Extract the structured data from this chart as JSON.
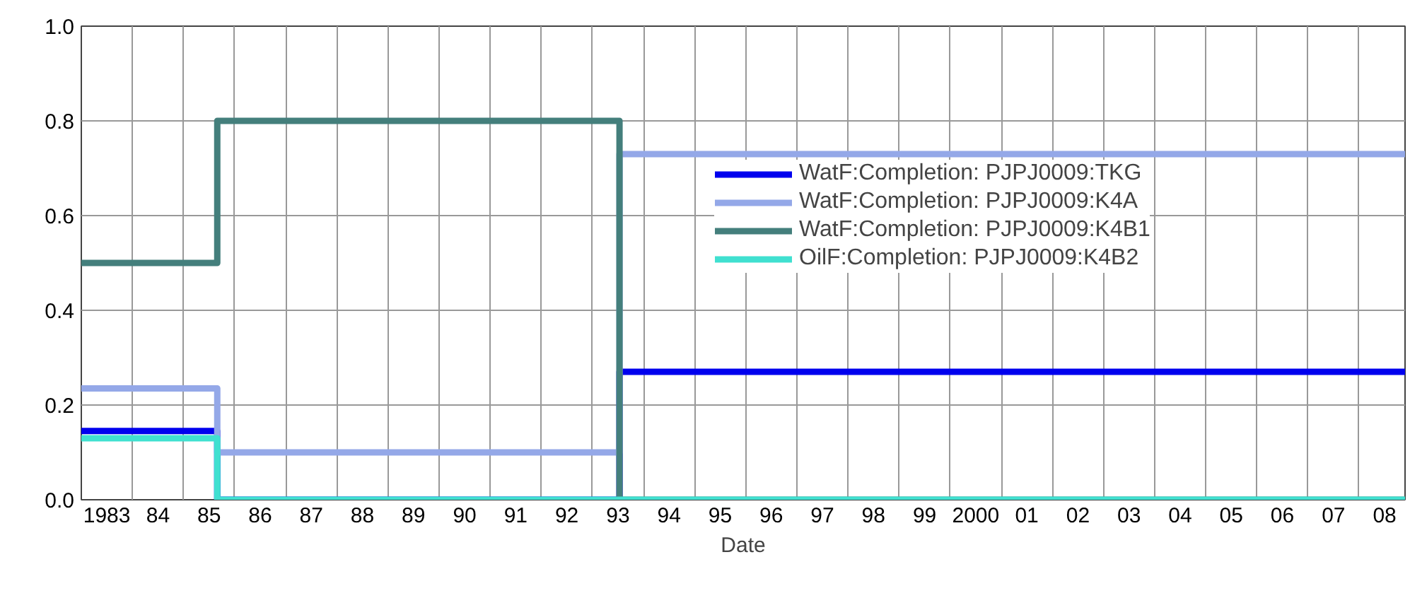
{
  "chart_data": {
    "type": "step",
    "xlabel": "Date",
    "x": [
      1982.5,
      1985.16,
      1993.03,
      2008.4
    ],
    "series": [
      {
        "name": "WatF:Completion: PJPJ0009:TKG",
        "color": "#0000ee",
        "values": [
          0.145,
          0.0,
          0.27,
          0.27
        ]
      },
      {
        "name": "WatF:Completion: PJPJ0009:K4A",
        "color": "#94a8e8",
        "values": [
          0.235,
          0.1,
          0.73,
          0.73
        ]
      },
      {
        "name": "WatF:Completion: PJPJ0009:K4B1",
        "color": "#447f7c",
        "values": [
          0.5,
          0.8,
          0.0,
          0.0
        ]
      },
      {
        "name": "OilF:Completion: PJPJ0009:K4B2",
        "color": "#40e0d0",
        "values": [
          0.13,
          0.0,
          0.0,
          0.0
        ]
      }
    ],
    "xlim": [
      1982.5,
      2008.4
    ],
    "xticks": [
      {
        "value": 1982.5,
        "label": null
      },
      {
        "value": 1983,
        "label": "1983"
      },
      {
        "value": 1983.5,
        "label": null
      },
      {
        "value": 1984,
        "label": "84"
      },
      {
        "value": 1984.5,
        "label": null
      },
      {
        "value": 1985,
        "label": "85"
      },
      {
        "value": 1985.5,
        "label": null
      },
      {
        "value": 1986,
        "label": "86"
      },
      {
        "value": 1986.5,
        "label": null
      },
      {
        "value": 1987,
        "label": "87"
      },
      {
        "value": 1987.5,
        "label": null
      },
      {
        "value": 1988,
        "label": "88"
      },
      {
        "value": 1988.5,
        "label": null
      },
      {
        "value": 1989,
        "label": "89"
      },
      {
        "value": 1989.5,
        "label": null
      },
      {
        "value": 1990,
        "label": "90"
      },
      {
        "value": 1990.5,
        "label": null
      },
      {
        "value": 1991,
        "label": "91"
      },
      {
        "value": 1991.5,
        "label": null
      },
      {
        "value": 1992,
        "label": "92"
      },
      {
        "value": 1992.5,
        "label": null
      },
      {
        "value": 1993,
        "label": "93"
      },
      {
        "value": 1993.5,
        "label": null
      },
      {
        "value": 1994,
        "label": "94"
      },
      {
        "value": 1994.5,
        "label": null
      },
      {
        "value": 1995,
        "label": "95"
      },
      {
        "value": 1995.5,
        "label": null
      },
      {
        "value": 1996,
        "label": "96"
      },
      {
        "value": 1996.5,
        "label": null
      },
      {
        "value": 1997,
        "label": "97"
      },
      {
        "value": 1997.5,
        "label": null
      },
      {
        "value": 1998,
        "label": "98"
      },
      {
        "value": 1998.5,
        "label": null
      },
      {
        "value": 1999,
        "label": "99"
      },
      {
        "value": 1999.5,
        "label": null
      },
      {
        "value": 2000,
        "label": "2000"
      },
      {
        "value": 2000.5,
        "label": null
      },
      {
        "value": 2001,
        "label": "01"
      },
      {
        "value": 2001.5,
        "label": null
      },
      {
        "value": 2002,
        "label": "02"
      },
      {
        "value": 2002.5,
        "label": null
      },
      {
        "value": 2003,
        "label": "03"
      },
      {
        "value": 2003.5,
        "label": null
      },
      {
        "value": 2004,
        "label": "04"
      },
      {
        "value": 2004.5,
        "label": null
      },
      {
        "value": 2005,
        "label": "05"
      },
      {
        "value": 2005.5,
        "label": null
      },
      {
        "value": 2006,
        "label": "06"
      },
      {
        "value": 2006.5,
        "label": null
      },
      {
        "value": 2007,
        "label": "07"
      },
      {
        "value": 2007.5,
        "label": null
      },
      {
        "value": 2008,
        "label": "08"
      }
    ],
    "ylim": [
      0,
      1.0
    ],
    "yticks": [
      {
        "value": 0,
        "label": "0.0"
      },
      {
        "value": 0.05,
        "label": null
      },
      {
        "value": 0.1,
        "label": null
      },
      {
        "value": 0.15,
        "label": null
      },
      {
        "value": 0.2,
        "label": "0.2"
      },
      {
        "value": 0.25,
        "label": null
      },
      {
        "value": 0.3,
        "label": null
      },
      {
        "value": 0.35,
        "label": null
      },
      {
        "value": 0.4,
        "label": "0.4"
      },
      {
        "value": 0.45,
        "label": null
      },
      {
        "value": 0.5,
        "label": null
      },
      {
        "value": 0.55,
        "label": null
      },
      {
        "value": 0.6,
        "label": "0.6"
      },
      {
        "value": 0.65,
        "label": null
      },
      {
        "value": 0.7,
        "label": null
      },
      {
        "value": 0.75,
        "label": null
      },
      {
        "value": 0.8,
        "label": "0.8"
      },
      {
        "value": 0.85,
        "label": null
      },
      {
        "value": 0.9,
        "label": null
      },
      {
        "value": 0.95,
        "label": null
      },
      {
        "value": 1.0,
        "label": "1.0"
      }
    ],
    "grid": true,
    "legend": "right",
    "line_style": "solid",
    "marker": "none"
  }
}
